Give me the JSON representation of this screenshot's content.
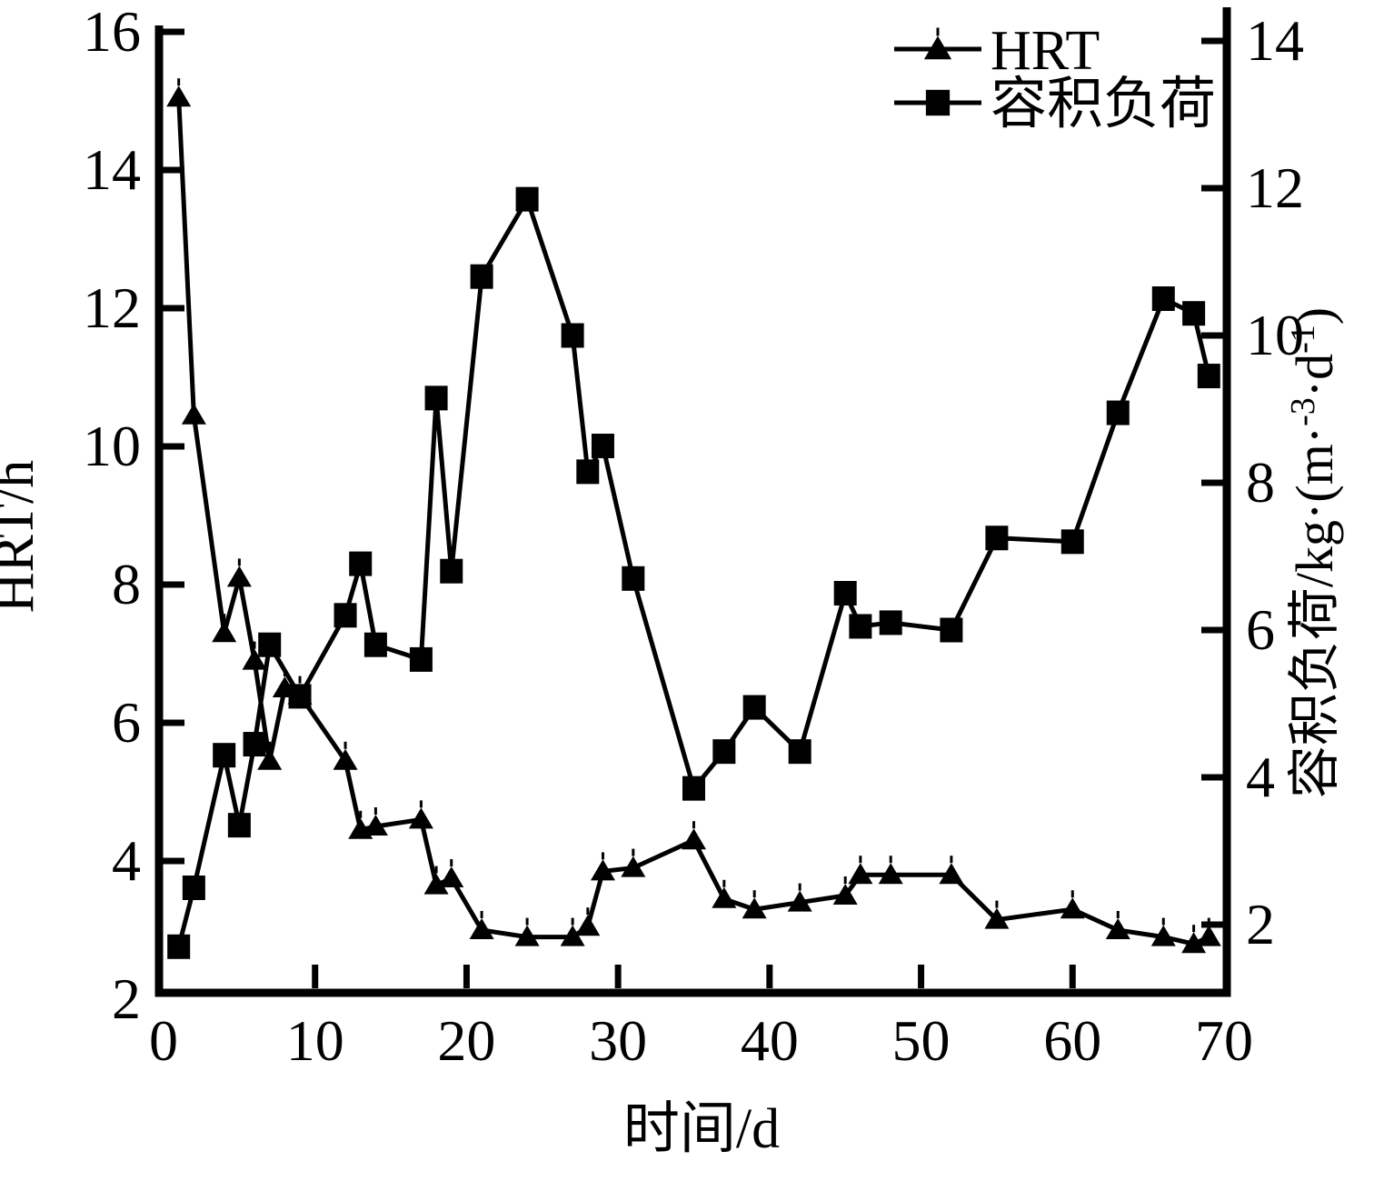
{
  "figure": {
    "background_color": "#ffffff",
    "foreground_color": "#000000"
  },
  "legend": {
    "position": "top-right-inside",
    "items": [
      {
        "label": "HRT",
        "marker": "filled-triangle"
      },
      {
        "label": "容积负荷",
        "marker": "filled-square"
      }
    ]
  },
  "chart_data": {
    "type": "line",
    "title": "",
    "xlabel": "时间/d",
    "ylabel_left": "HRT/h",
    "ylabel_right": "容积负荷/kg·(m·⁻³·d⁻¹)",
    "ylabel_right_segments": [
      {
        "t": "容积负荷/kg·(m·"
      },
      {
        "t": "-3",
        "sup": true
      },
      {
        "t": "·d"
      },
      {
        "t": "-1",
        "sup": true
      },
      {
        "t": ")"
      }
    ],
    "grid": false,
    "x_axis": {
      "min": 0,
      "max": 70,
      "ticks": [
        0,
        10,
        20,
        30,
        40,
        50,
        60,
        70
      ]
    },
    "y_left_axis": {
      "min": 2,
      "max": 16,
      "ticks": [
        2,
        4,
        6,
        8,
        10,
        12,
        14,
        16
      ]
    },
    "y_right_axis": {
      "min": 2,
      "max": 14,
      "ticks": [
        2,
        4,
        6,
        8,
        10,
        12,
        14
      ]
    },
    "series": [
      {
        "name": "HRT",
        "axis": "left",
        "marker": "triangle",
        "color": "#000000",
        "x": [
          1,
          2,
          4,
          5,
          6,
          7,
          8,
          9,
          12,
          13,
          14,
          17,
          18,
          19,
          21,
          24,
          27,
          28,
          29,
          31,
          35,
          37,
          39,
          42,
          45,
          46,
          48,
          52,
          55,
          60,
          63,
          66,
          68,
          69
        ],
        "y": [
          15.05,
          10.45,
          7.3,
          8.1,
          6.9,
          5.45,
          6.5,
          6.4,
          5.45,
          4.45,
          4.5,
          4.6,
          3.65,
          3.75,
          3.0,
          2.9,
          2.9,
          3.05,
          3.85,
          3.9,
          4.3,
          3.45,
          3.3,
          3.4,
          3.5,
          3.8,
          3.8,
          3.8,
          3.15,
          3.3,
          3.0,
          2.9,
          2.8,
          2.9
        ]
      },
      {
        "name": "容积负荷",
        "axis": "right",
        "marker": "square",
        "color": "#000000",
        "x": [
          1,
          2,
          4,
          5,
          6,
          7,
          9,
          12,
          13,
          14,
          17,
          18,
          19,
          21,
          24,
          27,
          28,
          29,
          31,
          35,
          37,
          39,
          42,
          45,
          46,
          48,
          52,
          55,
          60,
          63,
          66,
          68,
          69
        ],
        "y": [
          1.7,
          2.5,
          4.3,
          3.35,
          4.45,
          5.8,
          5.1,
          6.2,
          6.9,
          5.8,
          5.6,
          9.15,
          6.8,
          10.8,
          11.85,
          10.0,
          8.15,
          8.5,
          6.7,
          3.85,
          4.35,
          4.95,
          4.35,
          6.5,
          6.05,
          6.1,
          6.0,
          7.25,
          7.2,
          8.95,
          10.5,
          10.3,
          9.45
        ]
      }
    ]
  }
}
